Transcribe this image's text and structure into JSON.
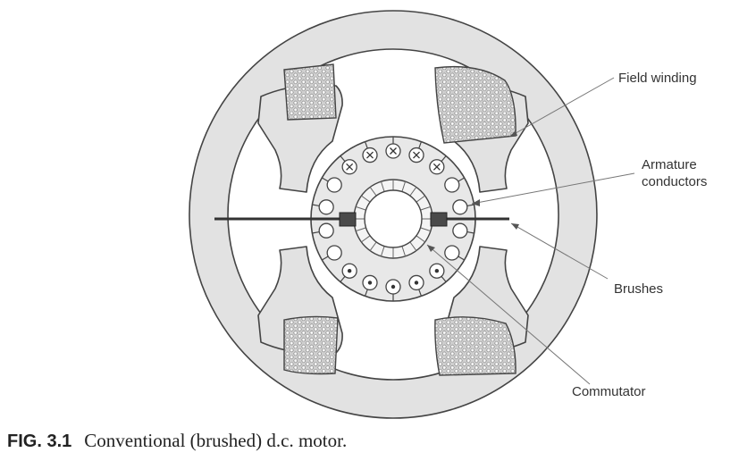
{
  "labels": {
    "field_winding": "Field winding",
    "armature_line1": "Armature",
    "armature_line2": "conductors",
    "brushes": "Brushes",
    "commutator": "Commutator"
  },
  "caption": {
    "number": "FIG. 3.1",
    "text": "Conventional (brushed) d.c. motor."
  },
  "colors": {
    "stator": "#e2e2e2",
    "outline": "#444444",
    "winding_fill": "#cfcfcf",
    "leader": "#666666"
  },
  "conductors": {
    "count": 18,
    "top_half_symbol": "cross",
    "bottom_half_symbol": "dot",
    "side_symbol": "empty"
  }
}
